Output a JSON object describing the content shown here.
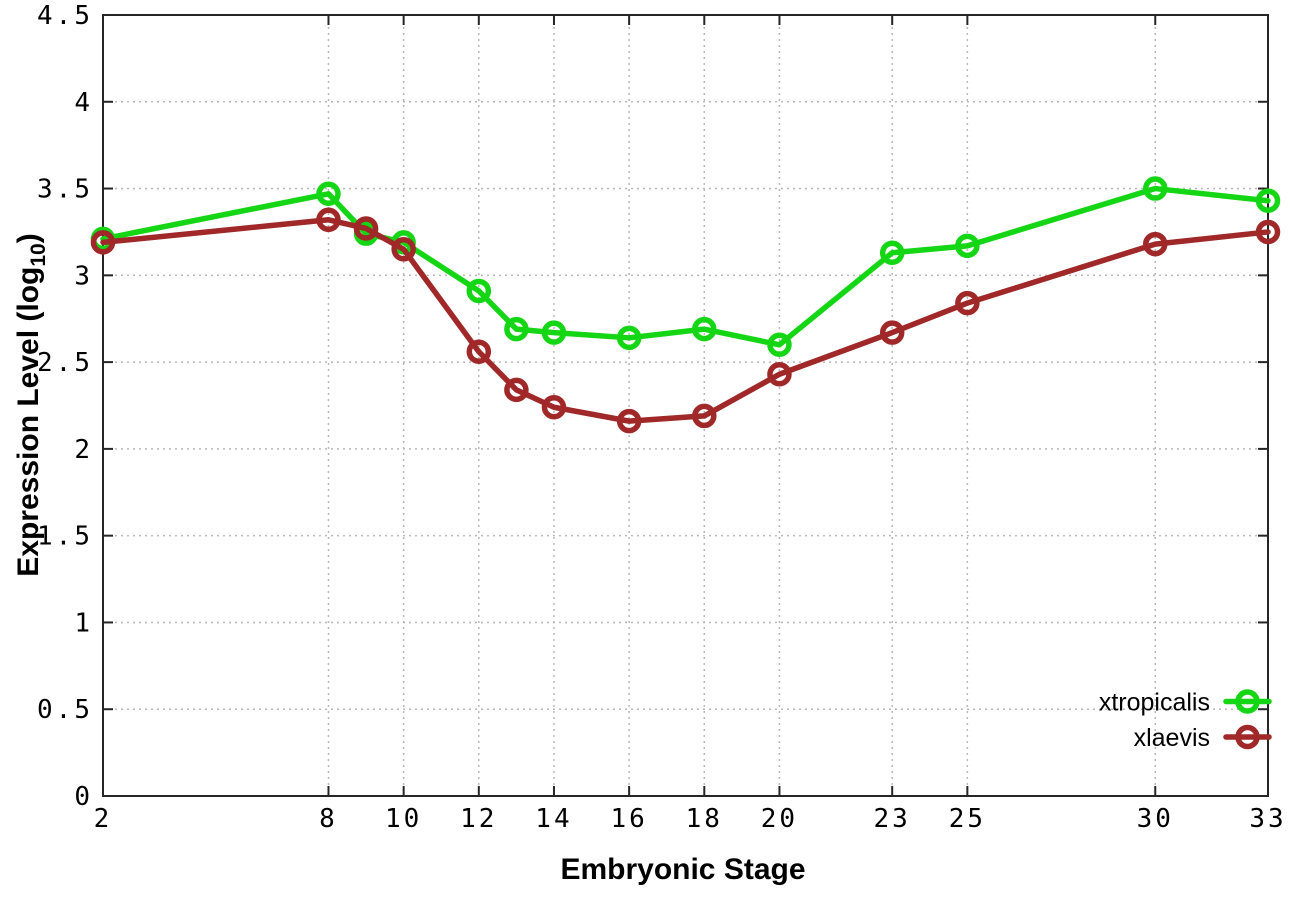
{
  "chart_data": {
    "type": "line",
    "title": "",
    "xlabel": "Embryonic Stage",
    "ylabel": {
      "main": "Expression Level (log",
      "sub": "10",
      "close": ")"
    },
    "xlim": [
      2,
      33
    ],
    "ylim": [
      0,
      4.5
    ],
    "grid": true,
    "legend_position": "bottom-right",
    "x_tick_values": [
      2,
      8,
      10,
      12,
      14,
      16,
      18,
      20,
      23,
      25,
      30,
      33
    ],
    "x_tick_labels": [
      "2",
      "8",
      "10",
      "12",
      "14",
      "16",
      "18",
      "20",
      "23",
      "25",
      "30",
      "33"
    ],
    "y_tick_values": [
      0,
      0.5,
      1,
      1.5,
      2,
      2.5,
      3,
      3.5,
      4,
      4.5
    ],
    "y_tick_labels": [
      "0",
      "0.5",
      "1",
      "1.5",
      "2",
      "2.5",
      "3",
      "3.5",
      "4",
      "4.5"
    ],
    "x": [
      2,
      8,
      9,
      10,
      12,
      13,
      14,
      16,
      18,
      20,
      23,
      25,
      30,
      33
    ],
    "series": [
      {
        "name": "xtropicalis",
        "color": "#15d615",
        "marker": "open-circle",
        "values": [
          3.21,
          3.47,
          3.24,
          3.19,
          2.91,
          2.69,
          2.67,
          2.64,
          2.69,
          2.6,
          3.13,
          3.17,
          3.5,
          3.43
        ]
      },
      {
        "name": "xlaevis",
        "color": "#a02828",
        "marker": "open-circle",
        "values": [
          3.19,
          3.32,
          3.27,
          3.15,
          2.56,
          2.34,
          2.24,
          2.16,
          2.19,
          2.43,
          2.67,
          2.84,
          3.18,
          3.25
        ]
      }
    ]
  },
  "colors": {
    "background": "#ffffff",
    "grid": "#b8b8b8",
    "axis": "#262626",
    "text": "#000000"
  }
}
